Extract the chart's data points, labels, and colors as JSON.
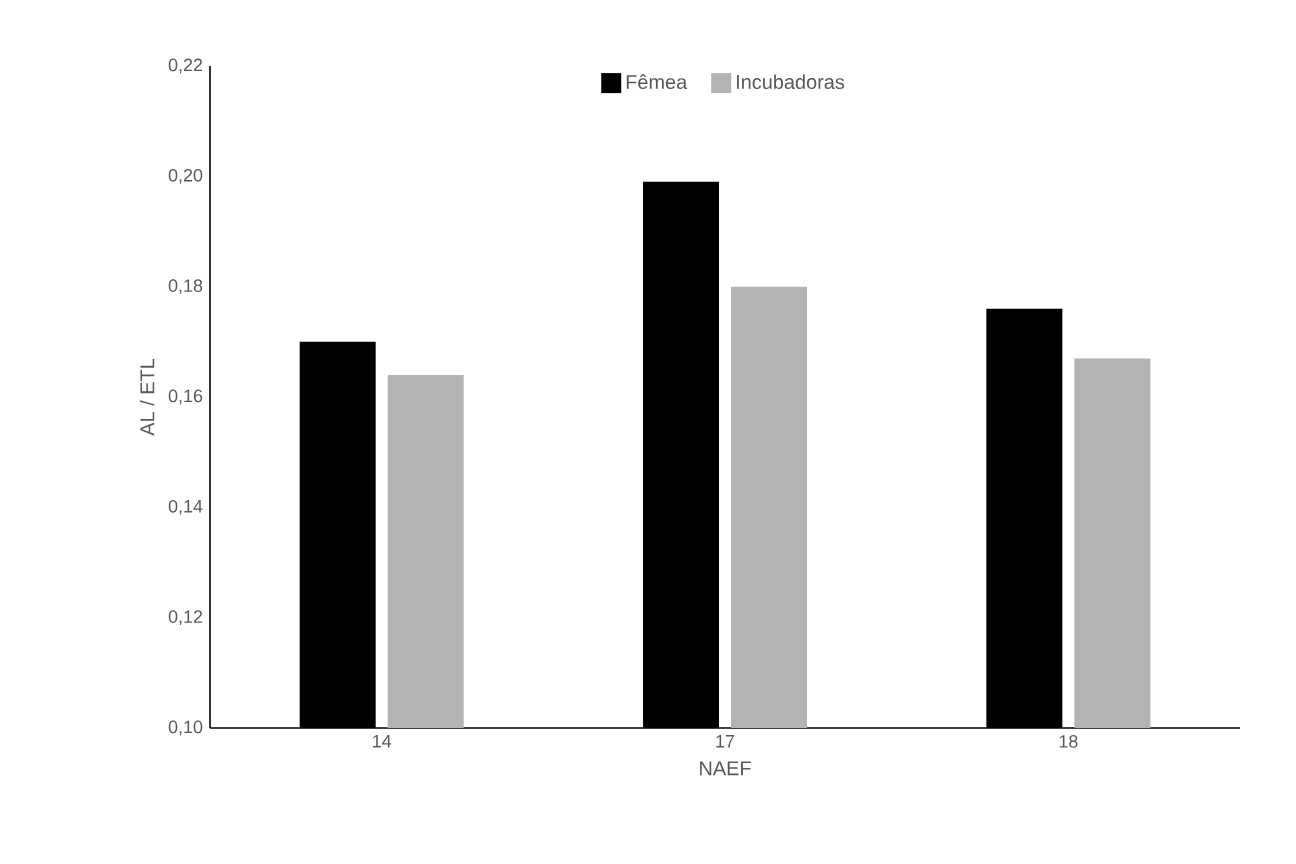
{
  "chart_data": {
    "type": "bar",
    "xlabel": "NAEF",
    "ylabel": "AL / ETL",
    "categories": [
      "14",
      "17",
      "18"
    ],
    "series": [
      {
        "name": "Fêmea",
        "color": "#000000",
        "values": [
          0.17,
          0.199,
          0.176
        ]
      },
      {
        "name": "Incubadoras",
        "color": "#b3b3b3",
        "values": [
          0.164,
          0.18,
          0.167
        ]
      }
    ],
    "ylim": [
      0.1,
      0.22
    ],
    "yticks": [
      {
        "value": 0.1,
        "label": "0,10"
      },
      {
        "value": 0.12,
        "label": "0,12"
      },
      {
        "value": 0.14,
        "label": "0,14"
      },
      {
        "value": 0.16,
        "label": "0,16"
      },
      {
        "value": 0.18,
        "label": "0,18"
      },
      {
        "value": 0.2,
        "label": "0,20"
      },
      {
        "value": 0.22,
        "label": "0,22"
      }
    ],
    "legend": "top",
    "grid": false
  }
}
